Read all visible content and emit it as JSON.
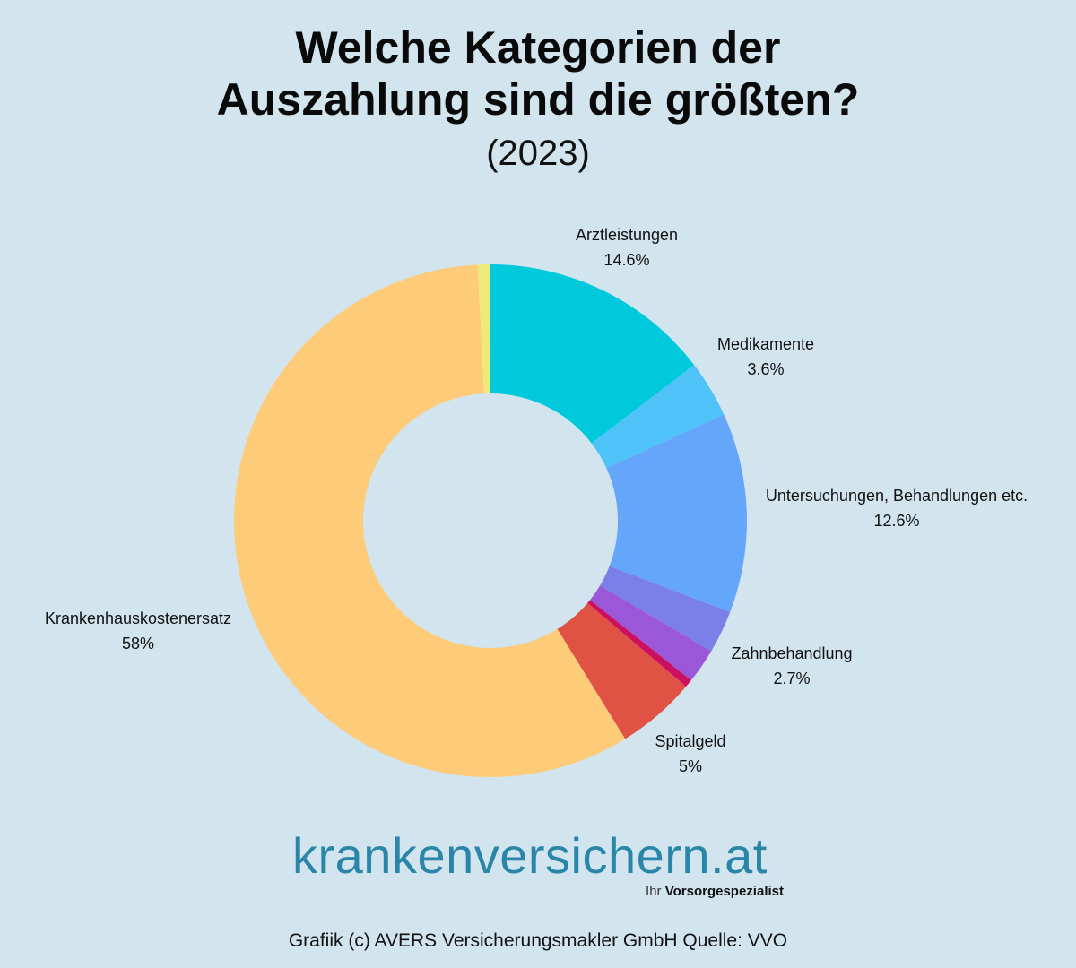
{
  "header": {
    "title_line1": "Welche Kategorien der",
    "title_line2": "Auszahlung sind die größten?",
    "subtitle": "(2023)"
  },
  "chart_data": {
    "type": "pie",
    "variant": "donut",
    "title": "Welche Kategorien der Auszahlung sind die größten?",
    "subtitle": "(2023)",
    "unit": "%",
    "slices": [
      {
        "name": "Arztleistungen",
        "value": 14.6,
        "label": "14.6%",
        "color": "#00c9dc",
        "labeled": true
      },
      {
        "name": "Medikamente",
        "value": 3.6,
        "label": "3.6%",
        "color": "#4fc3f7",
        "labeled": true
      },
      {
        "name": "Untersuchungen, Behandlungen etc.",
        "value": 12.6,
        "label": "12.6%",
        "color": "#64a6fa",
        "labeled": true
      },
      {
        "name": "Zahnbehandlung",
        "value": 2.7,
        "label": "2.7%",
        "color": "#7b80e8",
        "labeled": true
      },
      {
        "name": "unlabeled-purple",
        "value": 2.2,
        "label": "",
        "color": "#9a58d8",
        "labeled": false
      },
      {
        "name": "unlabeled-magenta",
        "value": 0.5,
        "label": "",
        "color": "#cc1060",
        "labeled": false
      },
      {
        "name": "Spitalgeld",
        "value": 5,
        "label": "5%",
        "color": "#df5244",
        "labeled": true
      },
      {
        "name": "Krankenhauskostenersatz",
        "value": 58,
        "label": "58%",
        "color": "#fecb78",
        "labeled": true
      },
      {
        "name": "unlabeled-yellow",
        "value": 0.8,
        "label": "",
        "color": "#eeea7a",
        "labeled": false
      }
    ]
  },
  "branding": {
    "logo_text": "krankenversichern.at",
    "tagline_prefix": "Ihr",
    "tagline_bold": "Vorsorgespezialist"
  },
  "footer": {
    "credit": "Grafiik (c) AVERS Versicherungsmakler GmbH Quelle: VVO"
  }
}
